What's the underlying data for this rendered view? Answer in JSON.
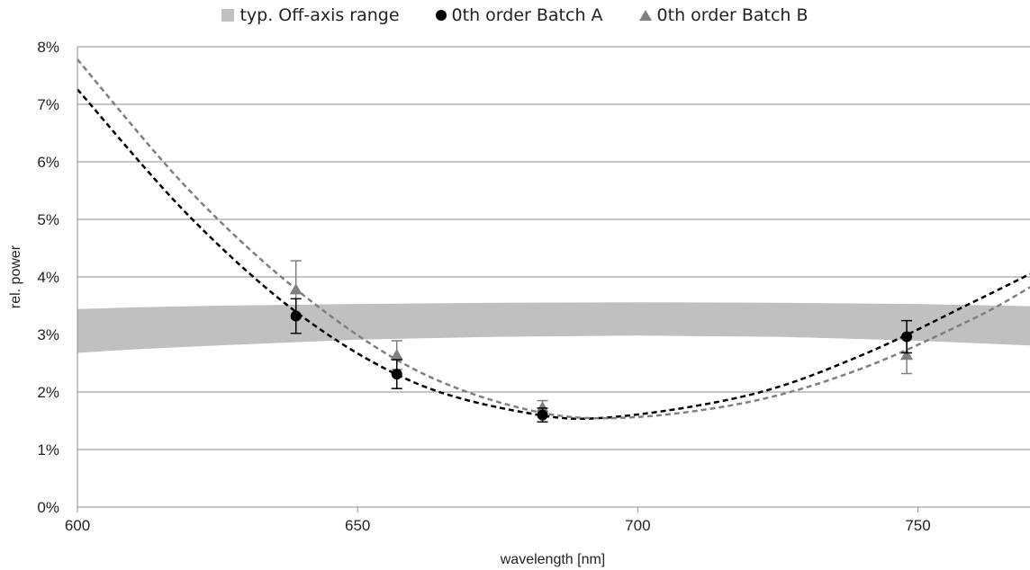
{
  "chart_data": {
    "type": "scatter",
    "title": "",
    "xlabel": "wavelength [nm]",
    "ylabel": "rel. power",
    "xlim": [
      600,
      770
    ],
    "ylim": [
      0,
      8
    ],
    "x_ticks": [
      600,
      650,
      700,
      750
    ],
    "y_ticks": [
      "0%",
      "1%",
      "2%",
      "3%",
      "4%",
      "5%",
      "6%",
      "7%",
      "8%"
    ],
    "grid": "horizontal",
    "legend_position": "top",
    "legend": [
      "typ. Off-axis range",
      "0th order Batch A",
      "0th order Batch B"
    ],
    "band": {
      "name": "typ. Off-axis range",
      "color": "#c0c0c0",
      "x": [
        600,
        610,
        625,
        650,
        675,
        700,
        725,
        750,
        770
      ],
      "lower": [
        2.68,
        2.74,
        2.81,
        2.91,
        2.96,
        2.98,
        2.96,
        2.89,
        2.81
      ],
      "upper": [
        3.44,
        3.47,
        3.5,
        3.53,
        3.55,
        3.56,
        3.55,
        3.53,
        3.49
      ]
    },
    "series": [
      {
        "name": "0th order Batch A",
        "marker": "circle",
        "color": "#000000",
        "x": [
          639,
          657,
          683,
          748
        ],
        "y": [
          3.32,
          2.31,
          1.6,
          2.96
        ],
        "err": [
          0.3,
          0.25,
          0.12,
          0.28
        ],
        "trend": [
          [
            600,
            7.26
          ],
          [
            620,
            5.05
          ],
          [
            640,
            3.32
          ],
          [
            660,
            2.17
          ],
          [
            680,
            1.64
          ],
          [
            695,
            1.56
          ],
          [
            720,
            1.95
          ],
          [
            740,
            2.64
          ],
          [
            760,
            3.57
          ],
          [
            770,
            4.05
          ]
        ]
      },
      {
        "name": "0th order Batch B",
        "marker": "triangle",
        "color": "#7f7f7f",
        "x": [
          639,
          657,
          683,
          748
        ],
        "y": [
          3.78,
          2.64,
          1.73,
          2.64
        ],
        "err": [
          0.5,
          0.25,
          0.12,
          0.32
        ],
        "trend": [
          [
            600,
            7.78
          ],
          [
            620,
            5.5
          ],
          [
            640,
            3.71
          ],
          [
            660,
            2.4
          ],
          [
            680,
            1.7
          ],
          [
            697,
            1.55
          ],
          [
            720,
            1.83
          ],
          [
            740,
            2.41
          ],
          [
            760,
            3.28
          ],
          [
            770,
            3.82
          ]
        ]
      }
    ]
  }
}
